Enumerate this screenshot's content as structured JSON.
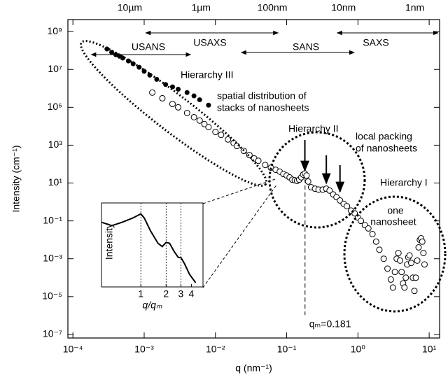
{
  "chart_data": {
    "type": "scatter",
    "log_x": true,
    "log_y": true,
    "xlabel": "q (nm⁻¹)",
    "ylabel": "Intensity (cm⁻¹)",
    "xlim": [
      8.5e-05,
      14
    ],
    "ylim": [
      6.5e-08,
      4300000000.0
    ],
    "xticks": [
      {
        "value": 0.0001,
        "label": "10⁻⁴"
      },
      {
        "value": 0.001,
        "label": "10⁻³"
      },
      {
        "value": 0.01,
        "label": "10⁻²"
      },
      {
        "value": 0.1,
        "label": "10⁻¹"
      },
      {
        "value": 1,
        "label": "10⁰"
      },
      {
        "value": 10,
        "label": "10¹"
      }
    ],
    "yticks": [
      {
        "value": 1000000000.0,
        "label": "10⁹"
      },
      {
        "value": 10000000.0,
        "label": "10⁷"
      },
      {
        "value": 100000.0,
        "label": "10⁵"
      },
      {
        "value": 1000.0,
        "label": "10³"
      },
      {
        "value": 10,
        "label": "10¹"
      },
      {
        "value": 0.1,
        "label": "10⁻¹"
      },
      {
        "value": 0.001,
        "label": "10⁻³"
      },
      {
        "value": 1e-05,
        "label": "10⁻⁵"
      },
      {
        "value": 1e-07,
        "label": "10⁻⁷"
      }
    ],
    "x2ticks": [
      {
        "value": 0.000628,
        "label": "10µm"
      },
      {
        "value": 0.00628,
        "label": "1µm"
      },
      {
        "value": 0.0628,
        "label": "100nm"
      },
      {
        "value": 0.628,
        "label": "10nm"
      },
      {
        "value": 6.28,
        "label": "1nm"
      }
    ],
    "series": [
      {
        "marker": "filled",
        "color": "#000000",
        "x": [
          0.0003,
          0.00035,
          0.0004,
          0.00045,
          0.0005,
          0.0006,
          0.0007,
          0.00085,
          0.001,
          0.0012,
          0.0015,
          0.002,
          0.0025,
          0.003,
          0.004,
          0.005,
          0.006,
          0.008
        ],
        "values": [
          120000000.0,
          80000000.0,
          60000000.0,
          50000000.0,
          40000000.0,
          28000000.0,
          20000000.0,
          13000000.0,
          8000000.0,
          5000000.0,
          3000000.0,
          1600000.0,
          1200000.0,
          900000.0,
          600000.0,
          400000.0,
          250000.0,
          130000.0
        ]
      },
      {
        "marker": "open",
        "color": "#000000",
        "x": [
          0.0013,
          0.0018,
          0.0025,
          0.003,
          0.004,
          0.005,
          0.006,
          0.007,
          0.008,
          0.01,
          0.012,
          0.015,
          0.018,
          0.02,
          0.025,
          0.03,
          0.035,
          0.04,
          0.05,
          0.06,
          0.07,
          0.08,
          0.09,
          0.1,
          0.11,
          0.12,
          0.13,
          0.14,
          0.15,
          0.16,
          0.17,
          0.18,
          0.19,
          0.2,
          0.22,
          0.25,
          0.28,
          0.32,
          0.36,
          0.4,
          0.45,
          0.5,
          0.56,
          0.63,
          0.7,
          0.8,
          0.9,
          1.0,
          1.1,
          1.25,
          1.4,
          1.6,
          1.8,
          2.0,
          2.3,
          2.6,
          2.9,
          3.1,
          3.3,
          3.5,
          3.7,
          3.9,
          4.1,
          4.3,
          4.5,
          4.7,
          4.9,
          5.1,
          5.3,
          5.6,
          5.9,
          6.2,
          6.5,
          6.8,
          7.1,
          7.4,
          7.7,
          8.0,
          8.3,
          8.6
        ],
        "values": [
          600000.0,
          300000.0,
          150000.0,
          100000.0,
          50000.0,
          30000.0,
          20000.0,
          13000.0,
          9000.0,
          5000.0,
          3500.0,
          2000.0,
          1300.0,
          900,
          500,
          300,
          200,
          150,
          90,
          65,
          50,
          40,
          30,
          25,
          20,
          15,
          14,
          13,
          15,
          20,
          28,
          32,
          25,
          12,
          6,
          5,
          4.5,
          4.5,
          5,
          4,
          2.5,
          1.8,
          1.2,
          0.8,
          0.6,
          0.35,
          0.25,
          0.15,
          0.1,
          0.06,
          0.04,
          0.02,
          0.008,
          0.003,
          0.001,
          0.0003,
          8e-05,
          3e-05,
          0.0002,
          0.001,
          0.002,
          0.0008,
          0.0002,
          5e-05,
          3e-05,
          0.0001,
          0.0005,
          0.0012,
          0.0015,
          0.0006,
          0.0001,
          2e-05,
          0.0001,
          0.0008,
          0.004,
          0.01,
          0.012,
          0.008,
          0.002,
          0.0005
        ]
      }
    ],
    "regions": [
      {
        "label": "USANS",
        "range": [
          0.00018,
          0.0045
        ]
      },
      {
        "label": "USAXS",
        "range": [
          0.00105,
          0.076
        ]
      },
      {
        "label": "SANS",
        "range": [
          0.023,
          0.89
        ]
      },
      {
        "label": "SAXS",
        "range": [
          0.51,
          14
        ]
      }
    ],
    "annotations": [
      "Hierarchy III",
      "spatial distribution of",
      "stacks of nanosheets",
      "Hierarchy II",
      "local packing",
      "of nanosheets",
      "Hierarchy I",
      "one",
      "nanosheet"
    ],
    "qm": {
      "value": 0.181,
      "label": "qₘ=0.181"
    },
    "peak_arrows": [
      0.18,
      0.36,
      0.56
    ],
    "inset": {
      "type": "line",
      "log_x": true,
      "xlabel": "q/qₘ",
      "ylabel": "Intensity",
      "xlim": [
        0.34,
        5.5
      ],
      "ylim": [
        0,
        1
      ],
      "xticks": [
        1,
        2,
        3,
        4
      ],
      "guides": [
        1,
        2,
        3
      ],
      "x": [
        0.34,
        0.45,
        0.6,
        0.8,
        1.0,
        1.1,
        1.3,
        1.6,
        1.8,
        2.0,
        2.2,
        2.5,
        2.8,
        3.0,
        3.3,
        3.8,
        4.5
      ],
      "values": [
        0.77,
        0.73,
        0.77,
        0.82,
        0.87,
        0.82,
        0.67,
        0.52,
        0.48,
        0.53,
        0.52,
        0.42,
        0.35,
        0.35,
        0.28,
        0.15,
        0.05
      ]
    }
  }
}
